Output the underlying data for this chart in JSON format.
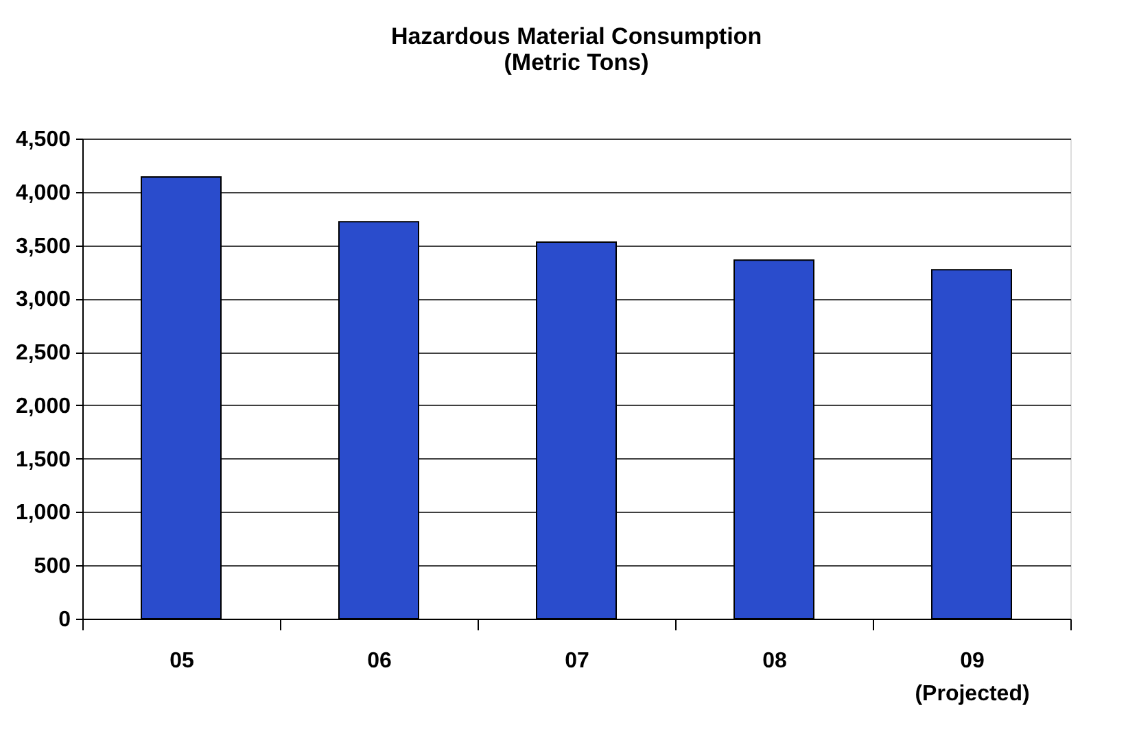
{
  "chart_data": {
    "type": "bar",
    "title": [
      "Hazardous Material Consumption",
      "(Metric Tons)"
    ],
    "categories": [
      "05",
      "06",
      "07",
      "08",
      "09\n(Projected)"
    ],
    "values": [
      4140,
      3720,
      3530,
      3360,
      3270
    ],
    "color": "#2a4ccc",
    "ylim": [
      0,
      4500
    ],
    "yticks": [
      0,
      500,
      {
        "value": 1000,
        "label": "1,000"
      },
      {
        "value": 1500,
        "label": "1,500"
      },
      {
        "value": 2000,
        "label": "2,000"
      },
      {
        "value": 2500,
        "label": "2,500"
      },
      {
        "value": 3000,
        "label": "3,000"
      },
      {
        "value": 3500,
        "label": "3,500"
      },
      {
        "value": 4000,
        "label": "4,000"
      },
      {
        "value": 4500,
        "label": "4,500"
      }
    ],
    "grid": "y"
  }
}
